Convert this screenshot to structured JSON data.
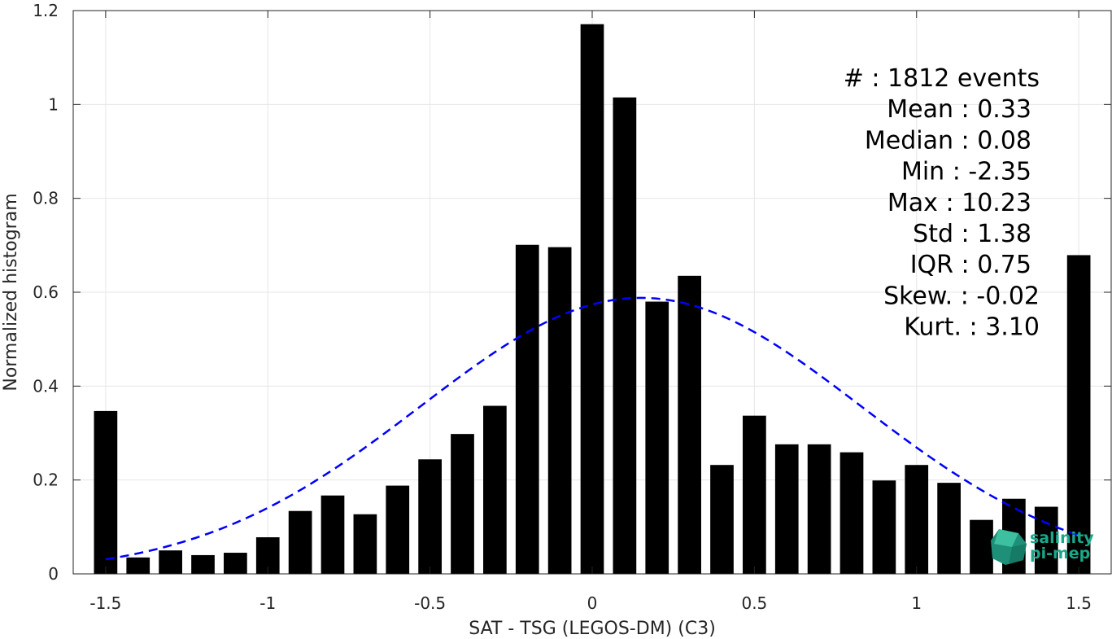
{
  "chart_data": {
    "type": "bar",
    "xlabel": "SAT - TSG (LEGOS-DM) (C3)",
    "ylabel": "Normalized histogram",
    "xlim": [
      -1.6,
      1.6
    ],
    "ylim": [
      0,
      1.2
    ],
    "xticks": [
      "-1.5",
      "-1",
      "-0.5",
      "0",
      "0.5",
      "1",
      "1.5"
    ],
    "xtick_values": [
      -1.5,
      -1,
      -0.5,
      0,
      0.5,
      1,
      1.5
    ],
    "yticks": [
      "0",
      "0.2",
      "0.4",
      "0.6",
      "0.8",
      "1",
      "1.2"
    ],
    "ytick_values": [
      0,
      0.2,
      0.4,
      0.6,
      0.8,
      1,
      1.2
    ],
    "grid": true,
    "bin_width": 0.1,
    "bins": [
      {
        "x": -1.5,
        "y": 0.347
      },
      {
        "x": -1.4,
        "y": 0.035
      },
      {
        "x": -1.3,
        "y": 0.05
      },
      {
        "x": -1.2,
        "y": 0.04
      },
      {
        "x": -1.1,
        "y": 0.045
      },
      {
        "x": -1.0,
        "y": 0.078
      },
      {
        "x": -0.9,
        "y": 0.134
      },
      {
        "x": -0.8,
        "y": 0.167
      },
      {
        "x": -0.7,
        "y": 0.127
      },
      {
        "x": -0.6,
        "y": 0.188
      },
      {
        "x": -0.5,
        "y": 0.244
      },
      {
        "x": -0.4,
        "y": 0.298
      },
      {
        "x": -0.3,
        "y": 0.358
      },
      {
        "x": -0.2,
        "y": 0.701
      },
      {
        "x": -0.1,
        "y": 0.696
      },
      {
        "x": 0.0,
        "y": 1.171
      },
      {
        "x": 0.1,
        "y": 1.015
      },
      {
        "x": 0.2,
        "y": 0.58
      },
      {
        "x": 0.3,
        "y": 0.635
      },
      {
        "x": 0.4,
        "y": 0.232
      },
      {
        "x": 0.5,
        "y": 0.337
      },
      {
        "x": 0.6,
        "y": 0.276
      },
      {
        "x": 0.7,
        "y": 0.276
      },
      {
        "x": 0.8,
        "y": 0.259
      },
      {
        "x": 0.9,
        "y": 0.199
      },
      {
        "x": 1.0,
        "y": 0.232
      },
      {
        "x": 1.1,
        "y": 0.194
      },
      {
        "x": 1.2,
        "y": 0.115
      },
      {
        "x": 1.3,
        "y": 0.16
      },
      {
        "x": 1.4,
        "y": 0.143
      },
      {
        "x": 1.5,
        "y": 0.679
      }
    ],
    "gaussian_fit": {
      "mean": 0.15,
      "peak": 0.588,
      "sigma": 0.68,
      "x_range": [
        -1.5,
        1.5
      ],
      "color": "#0000ff",
      "style": "dashed"
    },
    "bar_color": "#000000",
    "stats": [
      {
        "label": "#  : 1812 events"
      },
      {
        "label": "Mean : 0.33"
      },
      {
        "label": "Median : 0.08"
      },
      {
        "label": "Min : -2.35"
      },
      {
        "label": "Max : 10.23"
      },
      {
        "label": "Std : 1.38"
      },
      {
        "label": "IQR : 0.75"
      },
      {
        "label": "Skew. : -0.02"
      },
      {
        "label": "Kurt. : 3.10"
      }
    ]
  },
  "logo": {
    "line1": "salinity",
    "line2": "pi-mep",
    "color": "#1aa88a"
  }
}
